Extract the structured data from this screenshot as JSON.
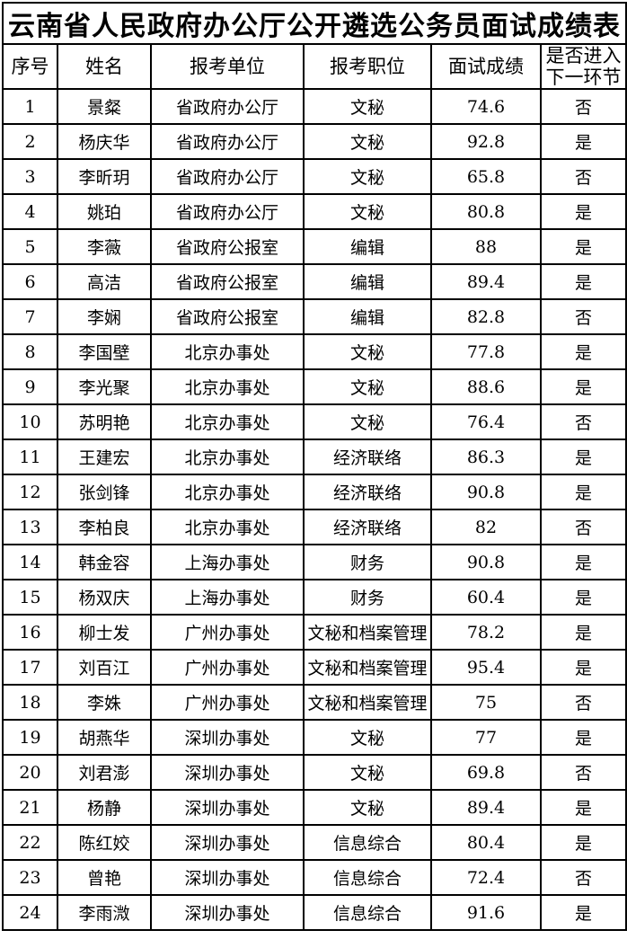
{
  "title": "云南省人民政府办公厅公开遴选公务员面试成绩表",
  "colors": {
    "background": "#ffffff",
    "text": "#000000",
    "border": "#000000"
  },
  "table": {
    "headers": [
      "序号",
      "姓名",
      "报考单位",
      "报考职位",
      "面试成绩",
      "是否进入下一环节"
    ],
    "column_keys": [
      "index",
      "name",
      "unit",
      "position",
      "score",
      "next_round"
    ],
    "rows": [
      {
        "index": "1",
        "name": "景粲",
        "unit": "省政府办公厅",
        "position": "文秘",
        "score": "74.6",
        "next_round": "否"
      },
      {
        "index": "2",
        "name": "杨庆华",
        "unit": "省政府办公厅",
        "position": "文秘",
        "score": "92.8",
        "next_round": "是"
      },
      {
        "index": "3",
        "name": "李昕玥",
        "unit": "省政府办公厅",
        "position": "文秘",
        "score": "65.8",
        "next_round": "否"
      },
      {
        "index": "4",
        "name": "姚珀",
        "unit": "省政府办公厅",
        "position": "文秘",
        "score": "80.8",
        "next_round": "是"
      },
      {
        "index": "5",
        "name": "李薇",
        "unit": "省政府公报室",
        "position": "编辑",
        "score": "88",
        "next_round": "是"
      },
      {
        "index": "6",
        "name": "高洁",
        "unit": "省政府公报室",
        "position": "编辑",
        "score": "89.4",
        "next_round": "是"
      },
      {
        "index": "7",
        "name": "李娴",
        "unit": "省政府公报室",
        "position": "编辑",
        "score": "82.8",
        "next_round": "否"
      },
      {
        "index": "8",
        "name": "李国壁",
        "unit": "北京办事处",
        "position": "文秘",
        "score": "77.8",
        "next_round": "是"
      },
      {
        "index": "9",
        "name": "李光聚",
        "unit": "北京办事处",
        "position": "文秘",
        "score": "88.6",
        "next_round": "是"
      },
      {
        "index": "10",
        "name": "苏明艳",
        "unit": "北京办事处",
        "position": "文秘",
        "score": "76.4",
        "next_round": "否"
      },
      {
        "index": "11",
        "name": "王建宏",
        "unit": "北京办事处",
        "position": "经济联络",
        "score": "86.3",
        "next_round": "是"
      },
      {
        "index": "12",
        "name": "张剑锋",
        "unit": "北京办事处",
        "position": "经济联络",
        "score": "90.8",
        "next_round": "是"
      },
      {
        "index": "13",
        "name": "李柏良",
        "unit": "北京办事处",
        "position": "经济联络",
        "score": "82",
        "next_round": "否"
      },
      {
        "index": "14",
        "name": "韩金容",
        "unit": "上海办事处",
        "position": "财务",
        "score": "90.8",
        "next_round": "是"
      },
      {
        "index": "15",
        "name": "杨双庆",
        "unit": "上海办事处",
        "position": "财务",
        "score": "60.4",
        "next_round": "是"
      },
      {
        "index": "16",
        "name": "柳士发",
        "unit": "广州办事处",
        "position": "文秘和档案管理",
        "score": "78.2",
        "next_round": "是"
      },
      {
        "index": "17",
        "name": "刘百江",
        "unit": "广州办事处",
        "position": "文秘和档案管理",
        "score": "95.4",
        "next_round": "是"
      },
      {
        "index": "18",
        "name": "李姝",
        "unit": "广州办事处",
        "position": "文秘和档案管理",
        "score": "75",
        "next_round": "否"
      },
      {
        "index": "19",
        "name": "胡燕华",
        "unit": "深圳办事处",
        "position": "文秘",
        "score": "77",
        "next_round": "是"
      },
      {
        "index": "20",
        "name": "刘君澎",
        "unit": "深圳办事处",
        "position": "文秘",
        "score": "69.8",
        "next_round": "否"
      },
      {
        "index": "21",
        "name": "杨静",
        "unit": "深圳办事处",
        "position": "文秘",
        "score": "89.4",
        "next_round": "是"
      },
      {
        "index": "22",
        "name": "陈红姣",
        "unit": "深圳办事处",
        "position": "信息综合",
        "score": "80.4",
        "next_round": "是"
      },
      {
        "index": "23",
        "name": "曾艳",
        "unit": "深圳办事处",
        "position": "信息综合",
        "score": "72.4",
        "next_round": "否"
      },
      {
        "index": "24",
        "name": "李雨溦",
        "unit": "深圳办事处",
        "position": "信息综合",
        "score": "91.6",
        "next_round": "是"
      }
    ]
  }
}
